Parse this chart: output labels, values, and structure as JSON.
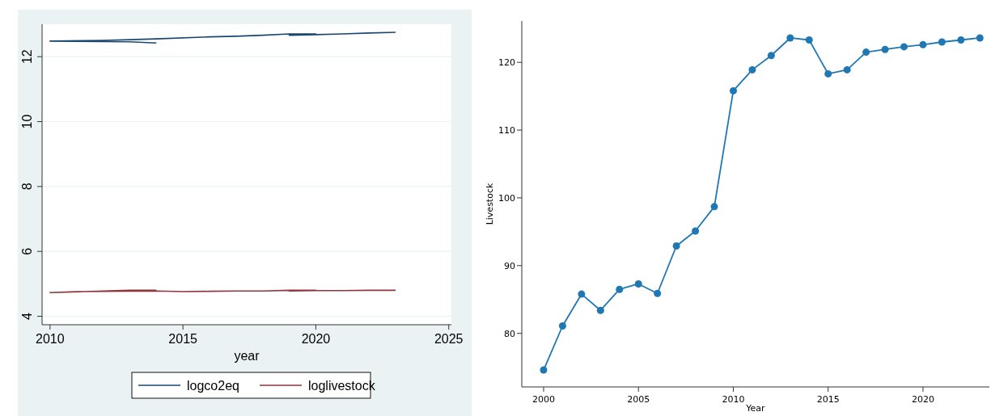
{
  "chart_data": [
    {
      "type": "line",
      "xlabel": "year",
      "xlim": [
        2009.7,
        2025.1
      ],
      "xticks": [
        2010,
        2015,
        2020,
        2025
      ],
      "ylim": [
        3.74,
        13.0
      ],
      "yticks": [
        4,
        6,
        8,
        10,
        12
      ],
      "grid": "y",
      "legend": "bottom",
      "marker": "none",
      "series": [
        {
          "name": "logco2eq",
          "color": "#1a476f",
          "x": [
            2014,
            2013,
            2010,
            2012,
            2014,
            2016,
            2017,
            2018,
            2019,
            2020,
            2019,
            2020,
            2021,
            2022,
            2023
          ],
          "values": [
            12.42,
            12.46,
            12.48,
            12.5,
            12.55,
            12.61,
            12.63,
            12.66,
            12.7,
            12.7,
            12.66,
            12.68,
            12.7,
            12.73,
            12.75
          ]
        },
        {
          "name": "loglivestock",
          "color": "#90353b",
          "x": [
            2014,
            2013,
            2010,
            2011,
            2012,
            2014,
            2015,
            2016,
            2017,
            2018,
            2019,
            2020,
            2019,
            2020,
            2021,
            2022,
            2023
          ],
          "values": [
            4.8,
            4.8,
            4.73,
            4.76,
            4.77,
            4.78,
            4.76,
            4.77,
            4.78,
            4.78,
            4.8,
            4.8,
            4.78,
            4.79,
            4.79,
            4.8,
            4.8
          ]
        }
      ]
    },
    {
      "type": "line",
      "xlabel": "Year",
      "ylabel": "Livestock",
      "xlim": [
        1998.85,
        2023.5
      ],
      "xticks": [
        2000,
        2005,
        2010,
        2015,
        2020
      ],
      "ylim": [
        72.1,
        126.1
      ],
      "yticks": [
        80,
        90,
        100,
        110,
        120
      ],
      "grid": false,
      "legend": false,
      "marker": "circle",
      "series": [
        {
          "color": "#1f77b4",
          "x": [
            2000,
            2001,
            2002,
            2003,
            2004,
            2005,
            2006,
            2007,
            2008,
            2009,
            2010,
            2011,
            2012,
            2013,
            2014,
            2015,
            2016,
            2017,
            2018,
            2019,
            2020,
            2021,
            2022,
            2023
          ],
          "values": [
            74.6,
            81.1,
            85.8,
            83.4,
            86.5,
            87.3,
            85.9,
            92.9,
            95.1,
            98.7,
            115.8,
            118.9,
            121.0,
            123.6,
            123.3,
            118.3,
            118.9,
            121.5,
            121.9,
            122.3,
            122.6,
            123.0,
            123.3,
            123.6
          ]
        }
      ]
    }
  ]
}
